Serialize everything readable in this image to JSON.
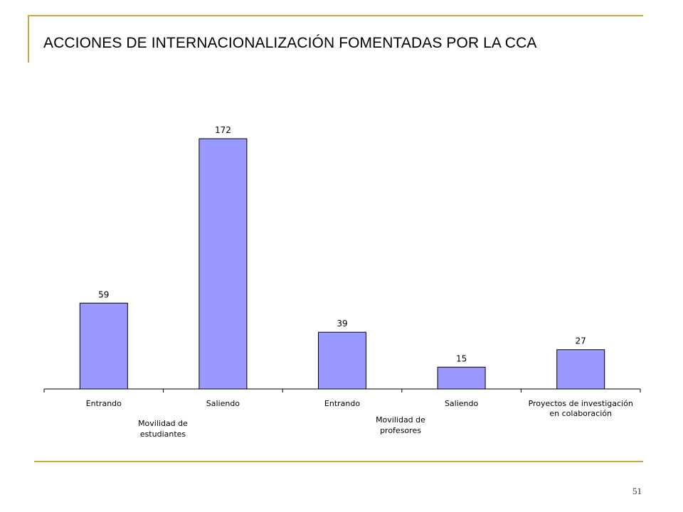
{
  "slide": {
    "title": "ACCIONES DE INTERNACIONALIZACIÓN FOMENTADAS POR LA CCA",
    "page_number": "51",
    "accent_color": "#c8a83a"
  },
  "chart_data": {
    "type": "bar",
    "title": "",
    "xlabel": "",
    "ylabel": "",
    "categories": [
      [
        "Entrando"
      ],
      [
        "Saliendo"
      ],
      [
        "Entrando"
      ],
      [
        "Saliendo"
      ],
      [
        "Proyectos de investigación",
        "en colaboración"
      ]
    ],
    "values": [
      59,
      172,
      39,
      15,
      27
    ],
    "groups": [
      {
        "label": [
          "Movilidad de",
          "estudiantes"
        ],
        "categories": [
          0,
          1
        ]
      },
      {
        "label": [
          "Movilidad de",
          "profesores"
        ],
        "categories": [
          2,
          3
        ]
      }
    ],
    "ylim": [
      0,
      200
    ],
    "bar_color": "#9999ff",
    "grid": false,
    "legend": "none"
  }
}
